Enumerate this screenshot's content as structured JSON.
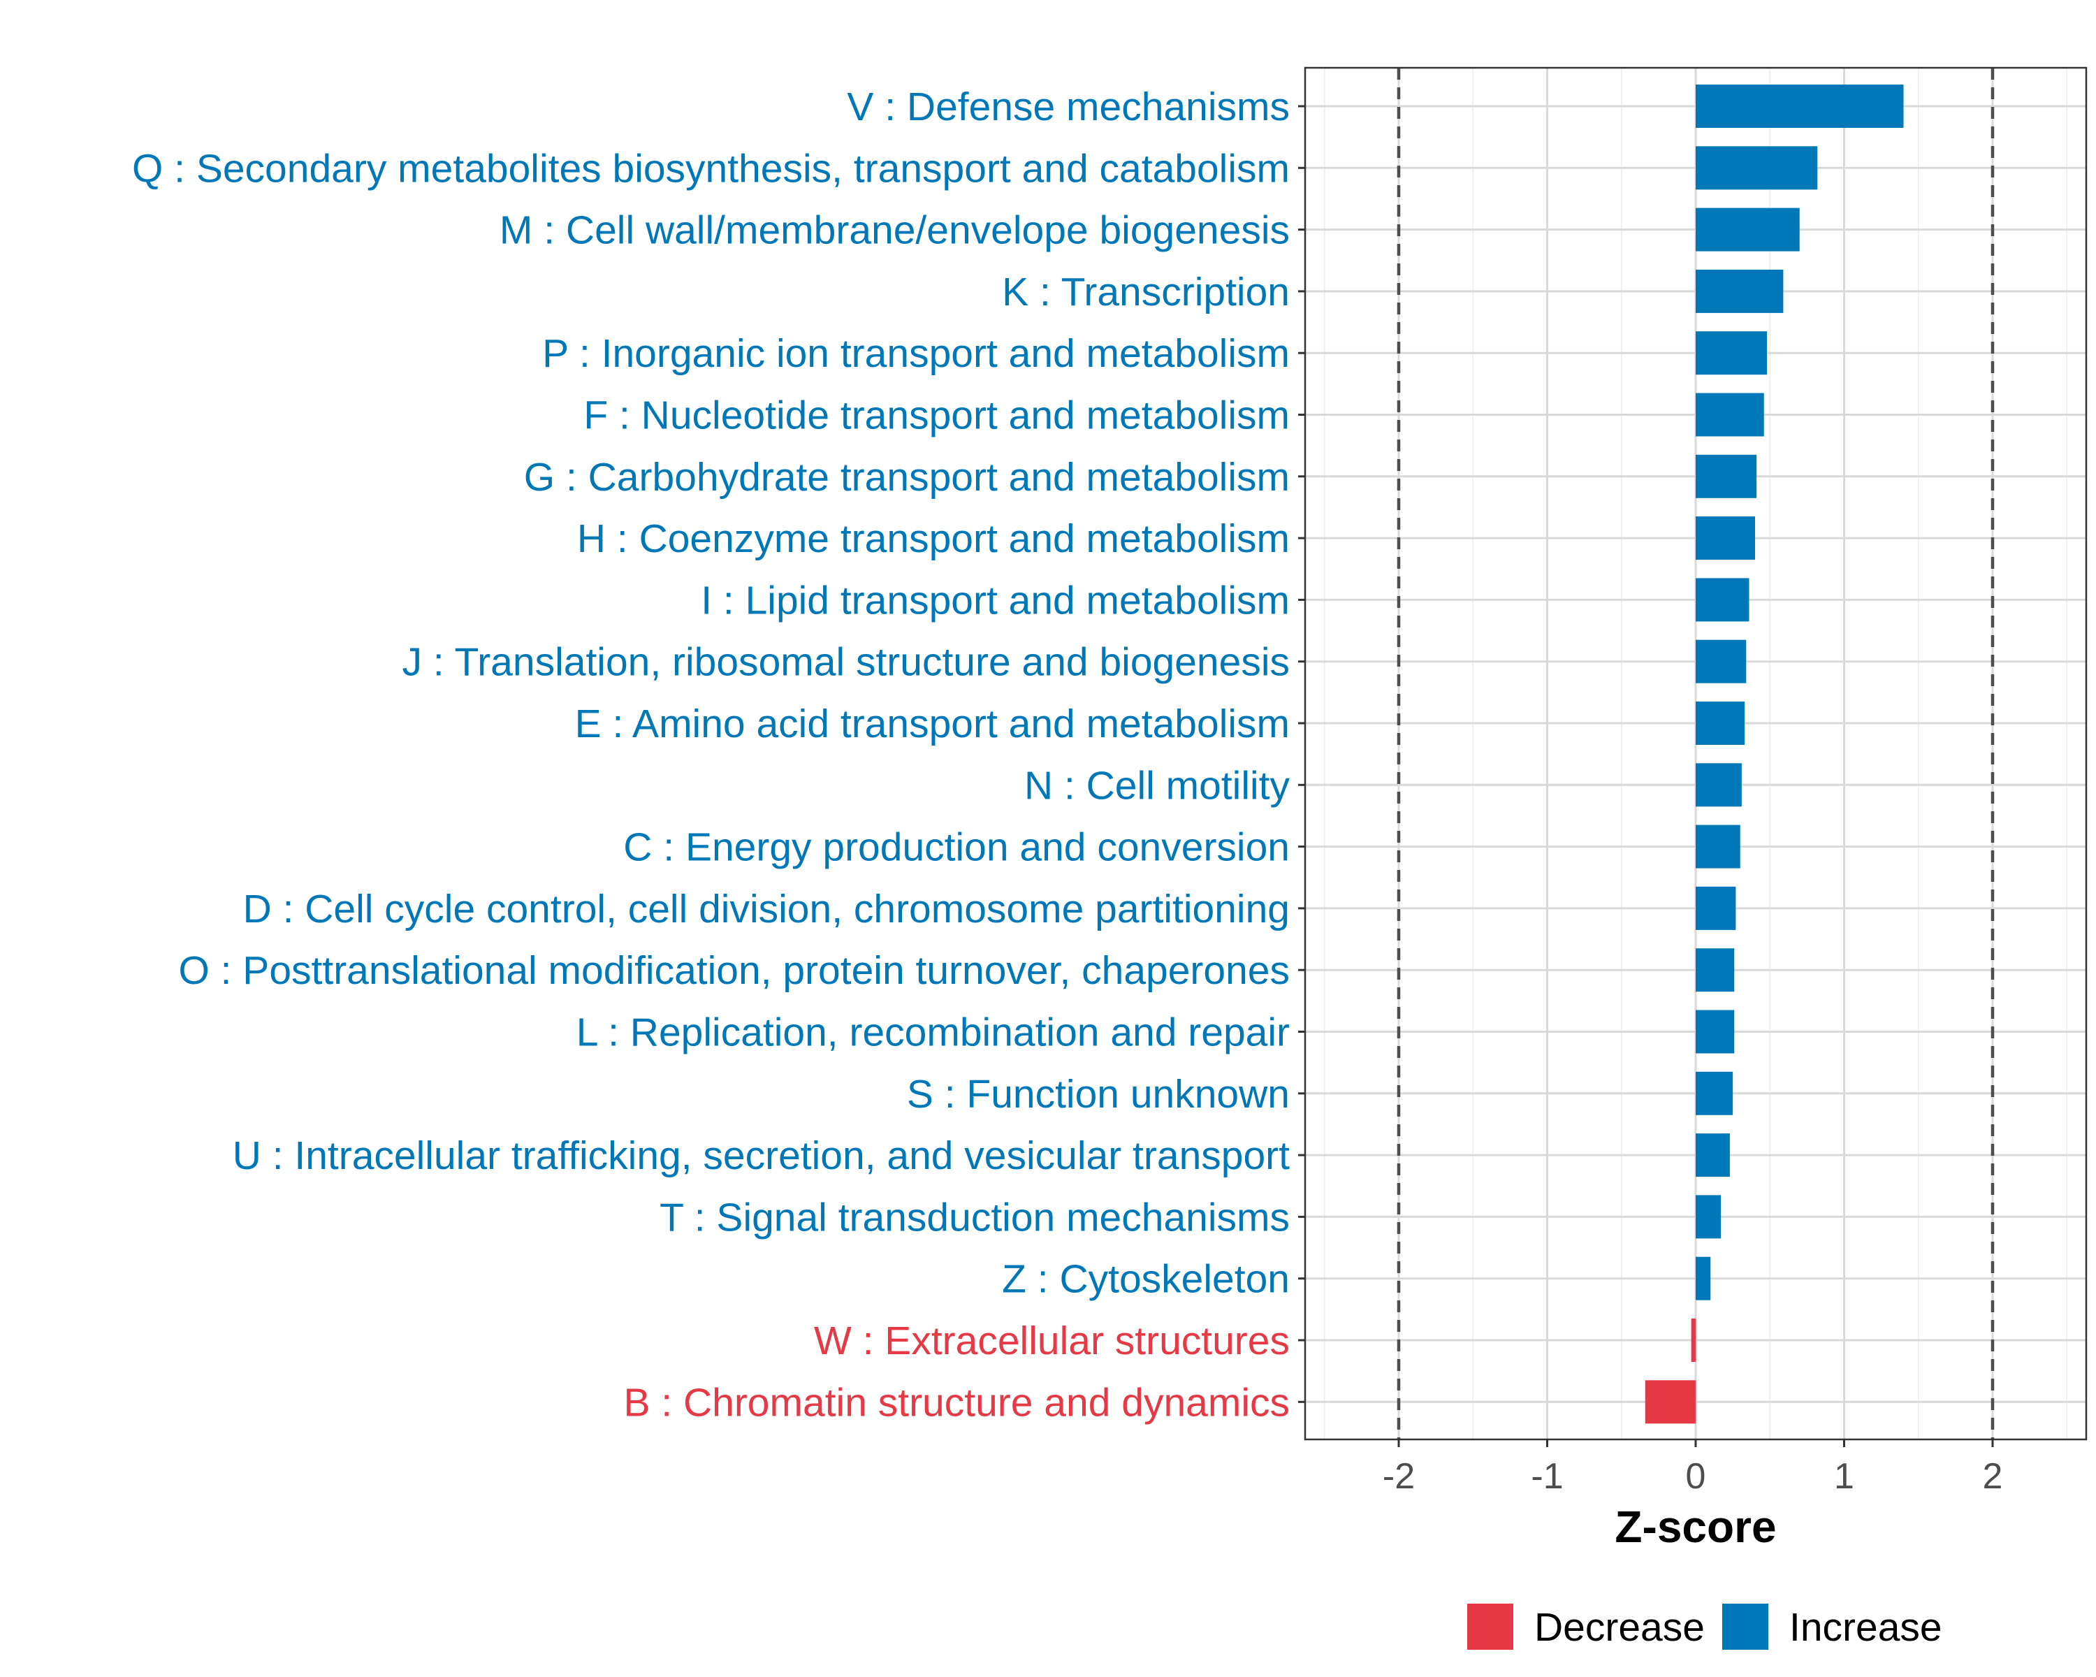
{
  "chart_data": {
    "type": "bar",
    "orientation": "horizontal",
    "title": "",
    "xlabel": "Z-score",
    "ylabel": "",
    "xlim": [
      -2.64,
      2.64
    ],
    "xticks": [
      -2,
      -1,
      0,
      1,
      2
    ],
    "xtick_labels": [
      "-2",
      "-1",
      "0",
      "1",
      "2"
    ],
    "reference_lines": [
      -2,
      2
    ],
    "grid": true,
    "legend_position": "bottom",
    "categories": [
      "V : Defense mechanisms",
      "Q : Secondary metabolites biosynthesis, transport and catabolism",
      "M : Cell wall/membrane/envelope biogenesis",
      "K : Transcription",
      "P : Inorganic ion transport and metabolism",
      "F : Nucleotide transport and metabolism",
      "G : Carbohydrate transport and metabolism",
      "H : Coenzyme transport and metabolism",
      "I : Lipid transport and metabolism",
      "J : Translation, ribosomal structure and biogenesis",
      "E : Amino acid transport and metabolism",
      "N : Cell motility",
      "C : Energy production and conversion",
      "D : Cell cycle control, cell division, chromosome partitioning",
      "O : Posttranslational modification, protein turnover, chaperones",
      "L : Replication, recombination and repair",
      "S : Function unknown",
      "U : Intracellular trafficking, secretion, and vesicular transport",
      "T : Signal transduction mechanisms",
      "Z : Cytoskeleton",
      "W : Extracellular structures",
      "B : Chromatin structure and dynamics"
    ],
    "values": [
      1.4,
      0.82,
      0.7,
      0.59,
      0.48,
      0.46,
      0.41,
      0.4,
      0.36,
      0.34,
      0.33,
      0.31,
      0.3,
      0.27,
      0.26,
      0.26,
      0.25,
      0.23,
      0.17,
      0.1,
      -0.03,
      -0.34
    ],
    "groups": [
      "Increase",
      "Increase",
      "Increase",
      "Increase",
      "Increase",
      "Increase",
      "Increase",
      "Increase",
      "Increase",
      "Increase",
      "Increase",
      "Increase",
      "Increase",
      "Increase",
      "Increase",
      "Increase",
      "Increase",
      "Increase",
      "Increase",
      "Increase",
      "Decrease",
      "Decrease"
    ],
    "legend": [
      {
        "label": "Decrease",
        "color": "#e63946"
      },
      {
        "label": "Increase",
        "color": "#0077b6"
      }
    ]
  },
  "colors": {
    "increase": "#0077b6",
    "decrease": "#e63946",
    "grid": "#d9d9d9",
    "panel_border": "#333333",
    "reference_line": "#4d4d4d"
  }
}
